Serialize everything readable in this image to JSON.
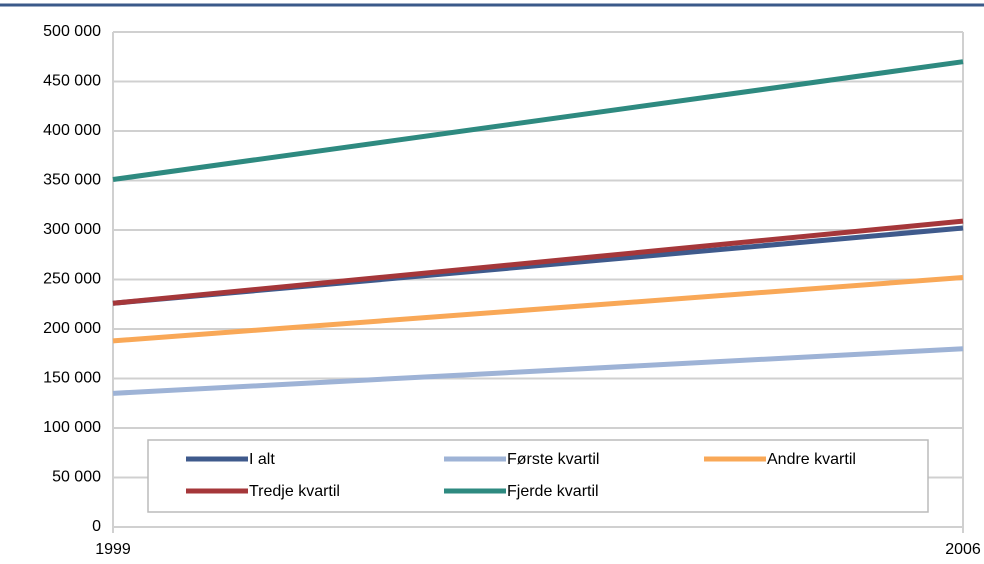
{
  "chart_data": {
    "type": "line",
    "x": [
      1999,
      2006
    ],
    "xlim": [
      1999,
      2006
    ],
    "xticks": [
      1999,
      2006
    ],
    "ylim": [
      0,
      500000
    ],
    "yticks": [
      {
        "value": 0,
        "label": "0"
      },
      {
        "value": 50000,
        "label": "50 000"
      },
      {
        "value": 100000,
        "label": "100 000"
      },
      {
        "value": 150000,
        "label": "150 000"
      },
      {
        "value": 200000,
        "label": "200 000"
      },
      {
        "value": 250000,
        "label": "250 000"
      },
      {
        "value": 300000,
        "label": "300 000"
      },
      {
        "value": 350000,
        "label": "350 000"
      },
      {
        "value": 400000,
        "label": "400 000"
      },
      {
        "value": 450000,
        "label": "450 000"
      },
      {
        "value": 500000,
        "label": "500 000"
      }
    ],
    "grid": true,
    "series": [
      {
        "name": "I alt",
        "color": "#3f5a8c",
        "values": [
          226000,
          302000
        ]
      },
      {
        "name": "Første kvartil",
        "color": "#9eb3d6",
        "values": [
          135000,
          180000
        ]
      },
      {
        "name": "Andre kvartil",
        "color": "#f9a857",
        "values": [
          188000,
          252000
        ]
      },
      {
        "name": "Tredje kvartil",
        "color": "#a5373a",
        "values": [
          226000,
          309000
        ]
      },
      {
        "name": "Fjerde kvartil",
        "color": "#2e8a80",
        "values": [
          351000,
          470000
        ]
      }
    ]
  }
}
